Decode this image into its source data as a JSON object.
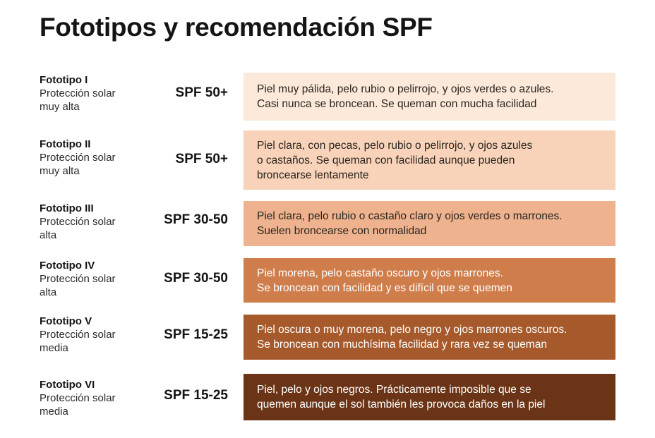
{
  "title": "Fototipos y recomendación SPF",
  "rows": [
    {
      "name": "Fototipo I",
      "protection": "Protección solar\nmuy alta",
      "spf": "SPF 50+",
      "description": "Piel muy pálida, pelo rubio o pelirrojo, y ojos verdes o azules.\nCasi nunca se broncean. Se queman con mucha facilidad",
      "box_color": "#fce9d9",
      "text_color": "#2a2520"
    },
    {
      "name": "Fototipo II",
      "protection": "Protección solar\nmuy alta",
      "spf": "SPF 50+",
      "description": "Piel clara, con pecas, pelo rubio o pelirrojo, y ojos azules\no castaños.  Se queman con facilidad aunque pueden\nbroncearse lentamente",
      "box_color": "#f8d3b9",
      "text_color": "#2a2520"
    },
    {
      "name": "Fototipo III",
      "protection": "Protección solar\nalta",
      "spf": "SPF 30-50",
      "description": "Piel clara, pelo rubio o castaño claro y ojos verdes o marrones.\nSuelen broncearse con normalidad",
      "box_color": "#eeb38e",
      "text_color": "#2a2520"
    },
    {
      "name": "Fototipo IV",
      "protection": "Protección solar\nalta",
      "spf": "SPF 30-50",
      "description": "Piel morena, pelo castaño oscuro y ojos marrones.\nSe broncean  con facilidad y es difícil que se quemen",
      "box_color": "#cf7d4b",
      "text_color": "#ffffff"
    },
    {
      "name": "Fototipo V",
      "protection": "Protección solar\nmedia",
      "spf": "SPF 15-25",
      "description": "Piel oscura o muy morena, pelo negro y ojos marrones oscuros.\nSe broncean con muchísima facilidad y rara vez se queman",
      "box_color": "#a65a2c",
      "text_color": "#ffffff"
    },
    {
      "name": "Fototipo VI",
      "protection": "Protección solar\nmedia",
      "spf": "SPF 15-25",
      "description": "Piel, pelo y ojos negros. Prácticamente imposible que se\nquemen aunque el sol también les provoca daños en la piel",
      "box_color": "#6b3416",
      "text_color": "#ffffff"
    }
  ]
}
